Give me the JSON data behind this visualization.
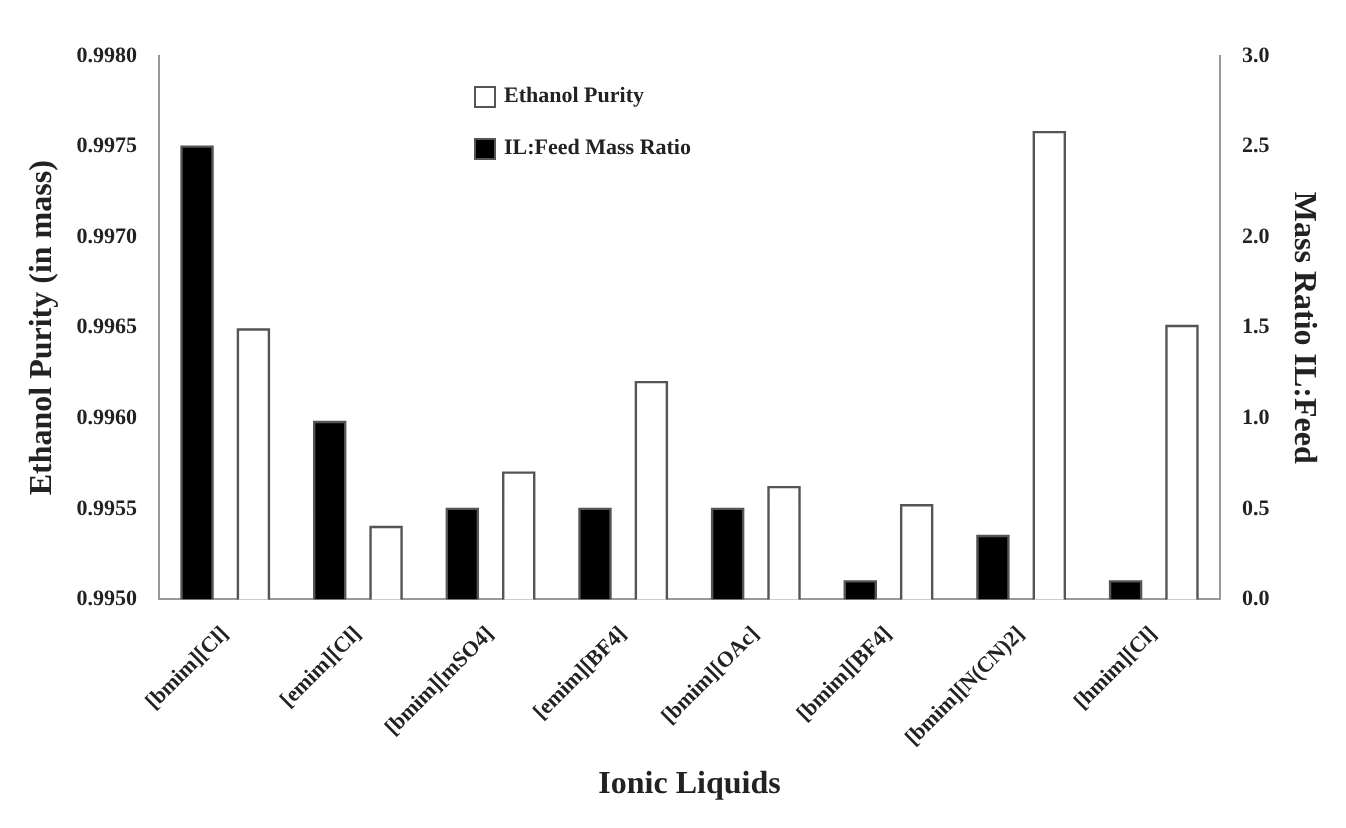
{
  "chart_data": {
    "type": "bar",
    "xlabel": "Ionic Liquids",
    "ylabel": "Ethanol Purity (in mass)",
    "y2label": "Mass Ratio IL:Feed",
    "categories": [
      "[bmim][Cl]",
      "[emim][Cl]",
      "[bmim][mSO4]",
      "[emim][BF4]",
      "[bmim][OAc]",
      "[bmim][BF4]",
      "[bmim][N(CN)2]",
      "[hmim][Cl]"
    ],
    "series": [
      {
        "name": "Ethanol Purity",
        "color": "#ffffff",
        "values": [
          0.99649,
          0.9954,
          0.9957,
          0.9962,
          0.99562,
          0.99552,
          0.99758,
          0.99651
        ]
      },
      {
        "name": "IL:Feed Mass Ratio",
        "color": "#000000",
        "axis": "y2",
        "values": [
          2.5,
          0.98,
          0.5,
          0.5,
          0.5,
          0.1,
          0.35,
          0.1
        ]
      }
    ],
    "ylim": [
      0.995,
      0.998
    ],
    "yticks": [
      {
        "value": 0.995,
        "label": "0.9950"
      },
      {
        "value": 0.9955,
        "label": "0.9955"
      },
      {
        "value": 0.996,
        "label": "0.9960"
      },
      {
        "value": 0.9965,
        "label": "0.9965"
      },
      {
        "value": 0.997,
        "label": "0.9970"
      },
      {
        "value": 0.9975,
        "label": "0.9975"
      },
      {
        "value": 0.998,
        "label": "0.9980"
      }
    ],
    "y2lim": [
      0,
      3
    ],
    "y2ticks": [
      {
        "value": 0,
        "label": "0.0"
      },
      {
        "value": 0.5,
        "label": "0.5"
      },
      {
        "value": 1,
        "label": "1.0"
      },
      {
        "value": 1.5,
        "label": "1.5"
      },
      {
        "value": 2,
        "label": "2.0"
      },
      {
        "value": 2.5,
        "label": "2.5"
      },
      {
        "value": 3,
        "label": "3.0"
      }
    ],
    "grid": false,
    "legend": "top"
  }
}
